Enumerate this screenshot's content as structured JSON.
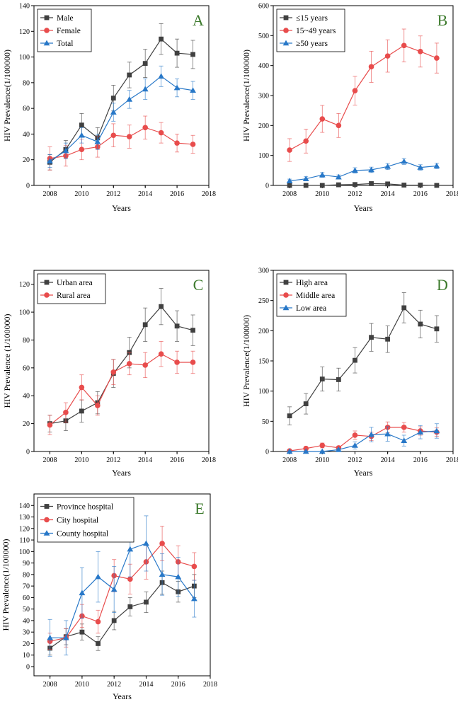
{
  "colors": {
    "black_series": "#404040",
    "red_series": "#e84c4c",
    "blue_series": "#2878c8",
    "panel_letter": "#3c7a2c"
  },
  "chart_data": [
    {
      "type": "line",
      "panel": "A",
      "ylabel": "HIV Prevalence(1/100000)",
      "xlabel": "Years",
      "xlim": [
        2007,
        2018
      ],
      "ylim": [
        0,
        140
      ],
      "xticks": [
        2008,
        2010,
        2012,
        2014,
        2016,
        2018
      ],
      "yticks": [
        0,
        20,
        40,
        60,
        80,
        100,
        120,
        140
      ],
      "x": [
        2008,
        2009,
        2010,
        2011,
        2012,
        2013,
        2014,
        2015,
        2016,
        2017
      ],
      "legend_position": "top-left",
      "series": [
        {
          "name": "Male",
          "color": "#404040",
          "marker": "square",
          "values": [
            18,
            28,
            47,
            37,
            68,
            86,
            95,
            114,
            103,
            102
          ],
          "errors": [
            6,
            7,
            9,
            8,
            10,
            10,
            11,
            12,
            11,
            11
          ]
        },
        {
          "name": "Female",
          "color": "#e84c4c",
          "marker": "circle",
          "values": [
            21,
            23,
            28,
            30,
            39,
            38,
            45,
            41,
            33,
            32
          ],
          "errors": [
            9,
            8,
            8,
            8,
            9,
            9,
            9,
            8,
            7,
            7
          ]
        },
        {
          "name": "Total",
          "color": "#2878c8",
          "marker": "triangle",
          "values": [
            19,
            27,
            39,
            34,
            57,
            67,
            75,
            85,
            76,
            74
          ],
          "errors": [
            5,
            6,
            6,
            6,
            7,
            7,
            8,
            8,
            7,
            7
          ]
        }
      ]
    },
    {
      "type": "line",
      "panel": "B",
      "ylabel": "HIV Prevalence(1/100000)",
      "xlabel": "Years",
      "xlim": [
        2007,
        2018
      ],
      "ylim": [
        0,
        600
      ],
      "xticks": [
        2008,
        2010,
        2012,
        2014,
        2016,
        2018
      ],
      "yticks": [
        0,
        100,
        200,
        300,
        400,
        500,
        600
      ],
      "x": [
        2008,
        2009,
        2010,
        2011,
        2012,
        2013,
        2014,
        2015,
        2016,
        2017
      ],
      "legend_position": "top-left",
      "series": [
        {
          "name": "≤15 years",
          "color": "#404040",
          "marker": "square",
          "values": [
            0,
            0,
            0,
            2,
            3,
            6,
            5,
            1,
            1,
            0
          ],
          "errors": [
            1,
            1,
            1,
            1,
            1,
            2,
            2,
            1,
            1,
            1
          ]
        },
        {
          "name": "15~49 years",
          "color": "#e84c4c",
          "marker": "circle",
          "values": [
            118,
            148,
            222,
            200,
            316,
            396,
            432,
            467,
            447,
            425
          ],
          "errors": [
            38,
            40,
            45,
            40,
            48,
            52,
            54,
            55,
            52,
            50
          ]
        },
        {
          "name": "≥50 years",
          "color": "#2878c8",
          "marker": "triangle",
          "values": [
            15,
            22,
            35,
            28,
            50,
            52,
            63,
            80,
            60,
            65
          ],
          "errors": [
            6,
            7,
            8,
            7,
            9,
            9,
            10,
            10,
            9,
            9
          ]
        }
      ]
    },
    {
      "type": "line",
      "panel": "C",
      "ylabel": "HIV Prevalence (1/100000)",
      "xlabel": "Years",
      "xlim": [
        2007,
        2018
      ],
      "ylim": [
        0,
        130
      ],
      "xticks": [
        2008,
        2010,
        2012,
        2014,
        2016,
        2018
      ],
      "yticks": [
        0,
        20,
        40,
        60,
        80,
        100,
        120
      ],
      "x": [
        2008,
        2009,
        2010,
        2011,
        2012,
        2013,
        2014,
        2015,
        2016,
        2017
      ],
      "legend_position": "top-left",
      "series": [
        {
          "name": "Urban area",
          "color": "#404040",
          "marker": "square",
          "values": [
            20,
            22,
            29,
            35,
            56,
            71,
            91,
            104,
            90,
            87
          ],
          "errors": [
            6,
            7,
            8,
            8,
            10,
            11,
            12,
            13,
            11,
            11
          ]
        },
        {
          "name": "Rural area",
          "color": "#e84c4c",
          "marker": "circle",
          "values": [
            19,
            28,
            46,
            33,
            57,
            63,
            62,
            70,
            64,
            64
          ],
          "errors": [
            7,
            7,
            9,
            7,
            9,
            8,
            9,
            9,
            8,
            8
          ]
        }
      ]
    },
    {
      "type": "line",
      "panel": "D",
      "ylabel": "HIV Prevalence(1/100000)",
      "xlabel": "Years",
      "xlim": [
        2007,
        2018
      ],
      "ylim": [
        0,
        300
      ],
      "xticks": [
        2008,
        2010,
        2012,
        2014,
        2016,
        2018
      ],
      "yticks": [
        0,
        50,
        100,
        150,
        200,
        250,
        300
      ],
      "x": [
        2008,
        2009,
        2010,
        2011,
        2012,
        2013,
        2014,
        2015,
        2016,
        2017
      ],
      "legend_position": "top-left",
      "series": [
        {
          "name": "High area",
          "color": "#404040",
          "marker": "square",
          "values": [
            59,
            79,
            120,
            119,
            151,
            189,
            186,
            238,
            211,
            203
          ],
          "errors": [
            15,
            17,
            20,
            19,
            21,
            23,
            22,
            25,
            23,
            22
          ]
        },
        {
          "name": "Middle area",
          "color": "#e84c4c",
          "marker": "circle",
          "values": [
            1,
            5,
            10,
            6,
            27,
            25,
            40,
            40,
            34,
            32
          ],
          "errors": [
            2,
            3,
            4,
            3,
            7,
            7,
            9,
            8,
            7,
            7
          ]
        },
        {
          "name": "Low area",
          "color": "#2878c8",
          "marker": "triangle",
          "values": [
            0,
            0,
            0,
            3,
            10,
            28,
            29,
            18,
            32,
            34
          ],
          "errors": [
            1,
            1,
            1,
            2,
            6,
            12,
            12,
            9,
            11,
            12
          ]
        }
      ]
    },
    {
      "type": "line",
      "panel": "E",
      "ylabel": "HIV Prevalence(1/100000)",
      "xlabel": "Years",
      "xlim": [
        2007,
        2018
      ],
      "ylim": [
        -8,
        150
      ],
      "xticks": [
        2008,
        2010,
        2012,
        2014,
        2016,
        2018
      ],
      "yticks": [
        0,
        10,
        20,
        30,
        40,
        50,
        60,
        70,
        80,
        90,
        100,
        110,
        120,
        130,
        140
      ],
      "x": [
        2008,
        2009,
        2010,
        2011,
        2012,
        2013,
        2014,
        2015,
        2016,
        2017
      ],
      "legend_position": "top-left",
      "series": [
        {
          "name": "Province hospital",
          "color": "#404040",
          "marker": "square",
          "values": [
            16,
            26,
            30,
            20,
            40,
            52,
            56,
            73,
            65,
            70
          ],
          "errors": [
            6,
            7,
            7,
            6,
            8,
            8,
            9,
            10,
            9,
            10
          ]
        },
        {
          "name": "City hospital",
          "color": "#e84c4c",
          "marker": "circle",
          "values": [
            22,
            25,
            44,
            39,
            79,
            76,
            91,
            107,
            91,
            87
          ],
          "errors": [
            7,
            8,
            10,
            10,
            14,
            13,
            15,
            15,
            14,
            12
          ]
        },
        {
          "name": "County hospital",
          "color": "#2878c8",
          "marker": "triangle",
          "values": [
            25,
            25,
            64,
            78,
            67,
            102,
            107,
            80,
            78,
            59
          ],
          "errors": [
            16,
            15,
            22,
            22,
            20,
            24,
            24,
            18,
            17,
            16
          ]
        }
      ]
    }
  ]
}
